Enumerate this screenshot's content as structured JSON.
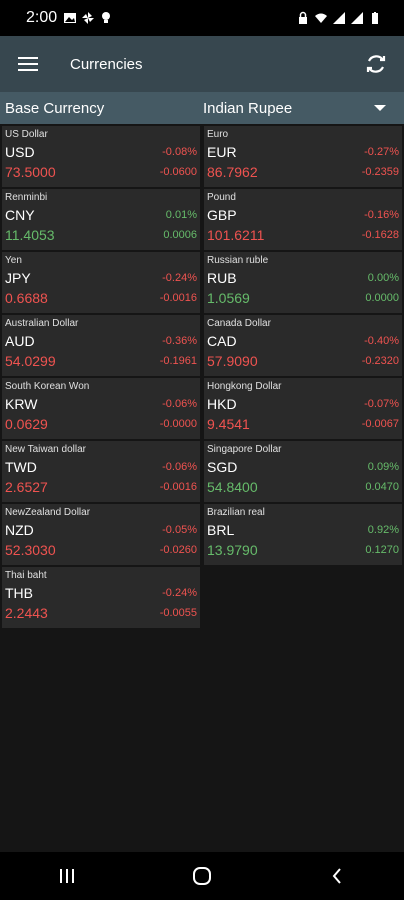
{
  "status_bar": {
    "time": "2:00",
    "left_icons": [
      "image-icon",
      "pinwheel-icon",
      "lightbulb-icon"
    ],
    "right_icons": [
      "lock-icon",
      "wifi-icon",
      "signal-icon",
      "signal-icon",
      "battery-icon"
    ]
  },
  "app_bar": {
    "title": "Currencies",
    "menu_icon": "hamburger-menu-icon",
    "refresh_icon": "refresh-icon"
  },
  "base_currency": {
    "label": "Base Currency",
    "selected": "Indian Rupee"
  },
  "currencies": [
    {
      "name": "US Dollar",
      "code": "USD",
      "pct": "-0.08%",
      "rate": "73.5000",
      "change": "-0.0600",
      "trend": "down"
    },
    {
      "name": "Euro",
      "code": "EUR",
      "pct": "-0.27%",
      "rate": "86.7962",
      "change": "-0.2359",
      "trend": "down"
    },
    {
      "name": "Renminbi",
      "code": "CNY",
      "pct": "0.01%",
      "rate": "11.4053",
      "change": "0.0006",
      "trend": "up"
    },
    {
      "name": "Pound",
      "code": "GBP",
      "pct": "-0.16%",
      "rate": "101.6211",
      "change": "-0.1628",
      "trend": "down"
    },
    {
      "name": "Yen",
      "code": "JPY",
      "pct": "-0.24%",
      "rate": "0.6688",
      "change": "-0.0016",
      "trend": "down"
    },
    {
      "name": "Russian ruble",
      "code": "RUB",
      "pct": "0.00%",
      "rate": "1.0569",
      "change": "0.0000",
      "trend": "up"
    },
    {
      "name": "Australian Dollar",
      "code": "AUD",
      "pct": "-0.36%",
      "rate": "54.0299",
      "change": "-0.1961",
      "trend": "down"
    },
    {
      "name": "Canada Dollar",
      "code": "CAD",
      "pct": "-0.40%",
      "rate": "57.9090",
      "change": "-0.2320",
      "trend": "down"
    },
    {
      "name": "South Korean Won",
      "code": "KRW",
      "pct": "-0.06%",
      "rate": "0.0629",
      "change": "-0.0000",
      "trend": "down"
    },
    {
      "name": "Hongkong Dollar",
      "code": "HKD",
      "pct": "-0.07%",
      "rate": "9.4541",
      "change": "-0.0067",
      "trend": "down"
    },
    {
      "name": "New Taiwan dollar",
      "code": "TWD",
      "pct": "-0.06%",
      "rate": "2.6527",
      "change": "-0.0016",
      "trend": "down"
    },
    {
      "name": "Singapore Dollar",
      "code": "SGD",
      "pct": "0.09%",
      "rate": "54.8400",
      "change": "0.0470",
      "trend": "up"
    },
    {
      "name": "NewZealand Dollar",
      "code": "NZD",
      "pct": "-0.05%",
      "rate": "52.3030",
      "change": "-0.0260",
      "trend": "down"
    },
    {
      "name": "Brazilian real",
      "code": "BRL",
      "pct": "0.92%",
      "rate": "13.9790",
      "change": "0.1270",
      "trend": "up"
    },
    {
      "name": "Thai baht",
      "code": "THB",
      "pct": "-0.24%",
      "rate": "2.2443",
      "change": "-0.0055",
      "trend": "down"
    }
  ],
  "nav_bar": {
    "buttons": [
      "recent-apps-icon",
      "home-icon",
      "back-icon"
    ]
  },
  "colors": {
    "app_bar": "#37474f",
    "base_bar": "#455a64",
    "card": "#2a2a2a",
    "negative": "#ef5350",
    "positive": "#66bb6a"
  }
}
